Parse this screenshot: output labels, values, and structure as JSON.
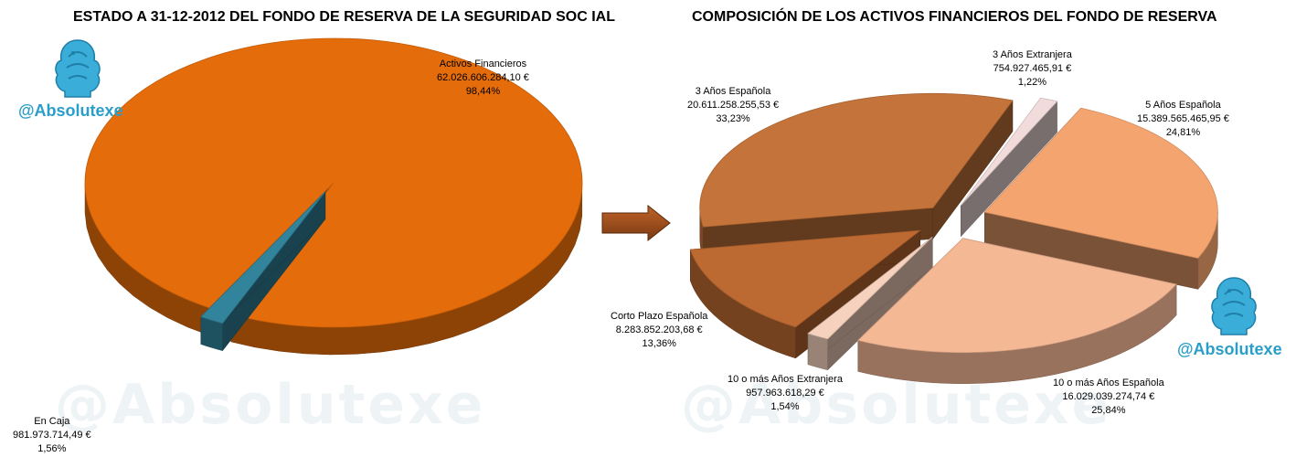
{
  "branding": {
    "handle": "@Absolutexe",
    "watermark": "@Absolutexe",
    "logo_icon": "griffin-icon",
    "accent_color": "#2a9ec8"
  },
  "arrow_icon": "right-arrow-icon",
  "chart_data": [
    {
      "type": "pie",
      "title": "ESTADO A 31-12-2012 DEL FONDO DE RESERVA DE LA SEGURIDAD SOC IAL",
      "style": "3d-exploded",
      "slices": [
        {
          "label": "Activos Financieros",
          "value": "62.026.606.284,10 €",
          "percent": "98,44%",
          "numeric_value": 62026606284.1,
          "color": "#e46c0a"
        },
        {
          "label": "En Caja",
          "value": "981.973.714,49 €",
          "percent": "1,56%",
          "numeric_value": 981973714.49,
          "color": "#31849b"
        }
      ]
    },
    {
      "type": "pie",
      "title": "COMPOSICIÓN DE LOS ACTIVOS FINANCIEROS DEL FONDO DE RESERVA",
      "style": "3d-exploded",
      "slices": [
        {
          "label": "3 Años Extranjera",
          "value": "754.927.465,91 €",
          "percent": "1,22%",
          "numeric_value": 754927465.91,
          "color": "#f2dcdb"
        },
        {
          "label": "5 Años Española",
          "value": "15.389.565.465,95 €",
          "percent": "24,81%",
          "numeric_value": 15389565465.95,
          "color": "#f4a46e"
        },
        {
          "label": "10 o más Años Española",
          "value": "16.029.039.274,74 €",
          "percent": "25,84%",
          "numeric_value": 16029039274.74,
          "color": "#f5b895"
        },
        {
          "label": "10 o más Años Extranjera",
          "value": "957.963.618,29 €",
          "percent": "1,54%",
          "numeric_value": 957963618.29,
          "color": "#f6d2be"
        },
        {
          "label": "Corto Plazo  Española",
          "value": "8.283.852.203,68 €",
          "percent": "13,36%",
          "numeric_value": 8283852203.68,
          "color": "#bd6a32"
        },
        {
          "label": "3 Años Española",
          "value": "20.611.258.255,53 €",
          "percent": "33,23%",
          "numeric_value": 20611258255.53,
          "color": "#c4733a"
        }
      ]
    }
  ]
}
